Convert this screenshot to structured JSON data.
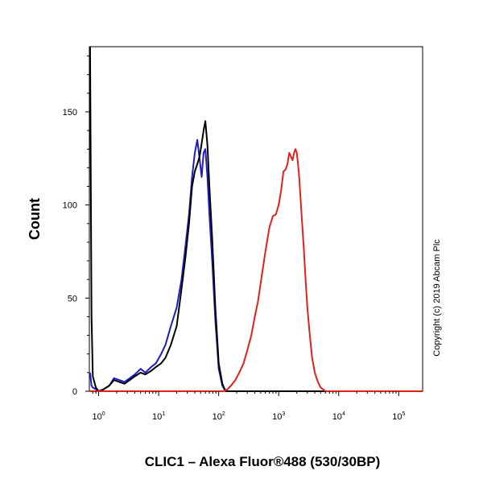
{
  "chart_data": {
    "type": "line",
    "title": "",
    "xlabel": "CLIC1 – Alexa Fluor®488 (530/30BP)",
    "ylabel": "Count",
    "x_scale": "log",
    "xlim": [
      0.7,
      250000
    ],
    "ylim": [
      0,
      185
    ],
    "x_ticks": [
      {
        "value": 1,
        "base": "10",
        "exp": "0"
      },
      {
        "value": 10,
        "base": "10",
        "exp": "1"
      },
      {
        "value": 100,
        "base": "10",
        "exp": "2"
      },
      {
        "value": 1000,
        "base": "10",
        "exp": "3"
      },
      {
        "value": 10000,
        "base": "10",
        "exp": "4"
      },
      {
        "value": 100000,
        "base": "10",
        "exp": "5"
      }
    ],
    "y_ticks": [
      0,
      50,
      100,
      150
    ],
    "grid": false,
    "legend": "none",
    "series": [
      {
        "color": "#1c1cc8",
        "x": [
          0.72,
          0.76,
          0.8,
          0.9,
          1.0,
          1.2,
          1.5,
          1.8,
          2.2,
          2.7,
          3.3,
          4,
          5,
          6,
          7.5,
          9,
          11,
          13,
          16,
          20,
          24,
          28,
          32,
          36,
          40,
          44,
          48,
          52,
          56,
          60,
          65,
          70,
          78,
          88,
          100,
          115,
          130,
          160,
          250000
        ],
        "y": [
          10,
          3,
          2,
          1,
          0,
          1,
          3,
          7,
          6,
          5,
          7,
          9,
          12,
          10,
          13,
          15,
          20,
          25,
          35,
          45,
          60,
          78,
          95,
          115,
          128,
          135,
          125,
          115,
          128,
          130,
          115,
          95,
          70,
          38,
          12,
          3,
          0,
          0,
          0
        ]
      },
      {
        "color": "#000000",
        "x": [
          0.72,
          0.76,
          0.8,
          0.9,
          1.0,
          1.2,
          1.5,
          1.8,
          2.2,
          2.7,
          3.3,
          4,
          5,
          6,
          7.5,
          9,
          11,
          13,
          16,
          20,
          24,
          28,
          32,
          36,
          40,
          44,
          48,
          52,
          56,
          60,
          65,
          70,
          78,
          88,
          100,
          115,
          130,
          160,
          250000
        ],
        "y": [
          185,
          40,
          8,
          2,
          0,
          1,
          3,
          6,
          5,
          4,
          6,
          8,
          10,
          9,
          11,
          13,
          15,
          18,
          25,
          35,
          55,
          72,
          90,
          110,
          118,
          122,
          126,
          133,
          140,
          145,
          132,
          110,
          82,
          45,
          15,
          4,
          0,
          0,
          0
        ]
      },
      {
        "color": "#e0201c",
        "x": [
          0.7,
          120,
          140,
          160,
          190,
          220,
          260,
          300,
          350,
          400,
          450,
          500,
          600,
          700,
          800,
          900,
          1000,
          1100,
          1200,
          1300,
          1400,
          1500,
          1600,
          1700,
          1800,
          1900,
          2000,
          2100,
          2200,
          2400,
          2600,
          2800,
          3000,
          3300,
          3600,
          4000,
          4500,
          5000,
          5500,
          6000,
          7000,
          8000,
          250000
        ],
        "y": [
          0,
          0,
          1,
          3,
          6,
          10,
          15,
          22,
          30,
          40,
          48,
          58,
          75,
          88,
          94,
          95,
          100,
          108,
          118,
          119,
          122,
          128,
          126,
          124,
          128,
          130,
          128,
          122,
          115,
          95,
          78,
          60,
          45,
          30,
          18,
          10,
          5,
          2,
          1,
          0,
          0,
          0,
          0
        ]
      }
    ]
  },
  "copyright": "Copyright (c) 2019 Abcam Plc"
}
